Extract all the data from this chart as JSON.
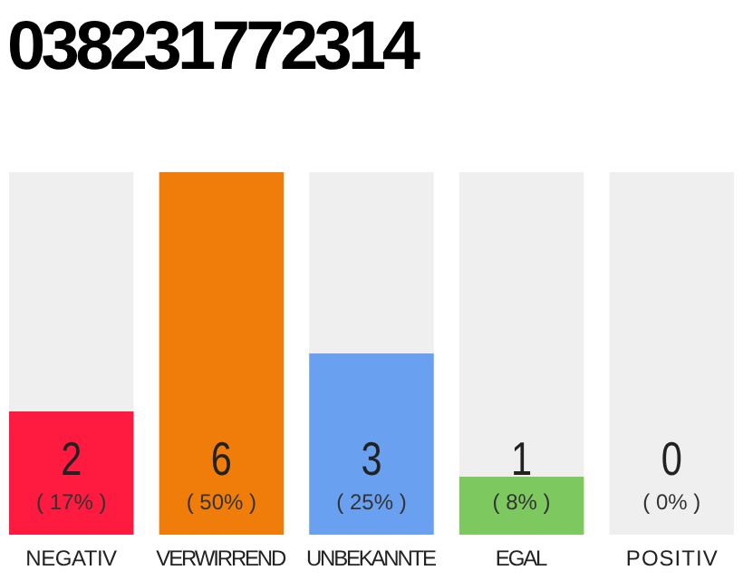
{
  "chart_data": {
    "type": "bar",
    "title": "038231772314",
    "categories": [
      "NEGATIV",
      "VERWIRREND",
      "UNBEKANNTE",
      "EGAL",
      "POSITIV"
    ],
    "values": [
      17,
      50,
      25,
      8,
      0
    ],
    "colors": [
      "#ff1a40",
      "#f07d0a",
      "#6aa0f0",
      "#7ec860",
      "#cccccc"
    ],
    "value_labels": [
      "2 ( 17% )",
      "6 ( 50% )",
      "3 ( 25% )",
      "1 ( 8% )",
      "0 ( 0% )"
    ],
    "bands": [
      {
        "axis": "x",
        "from": "NEGATIV",
        "to": "NEGATIV",
        "color": "#efefef"
      },
      {
        "axis": "x",
        "from": "UNBEKANNTE",
        "to": "UNBEKANNTE",
        "color": "#efefef"
      },
      {
        "axis": "x",
        "from": "EGAL",
        "to": "EGAL",
        "color": "#efefef"
      },
      {
        "axis": "x",
        "from": "POSITIV",
        "to": "POSITIV",
        "color": "#efefef"
      }
    ]
  }
}
